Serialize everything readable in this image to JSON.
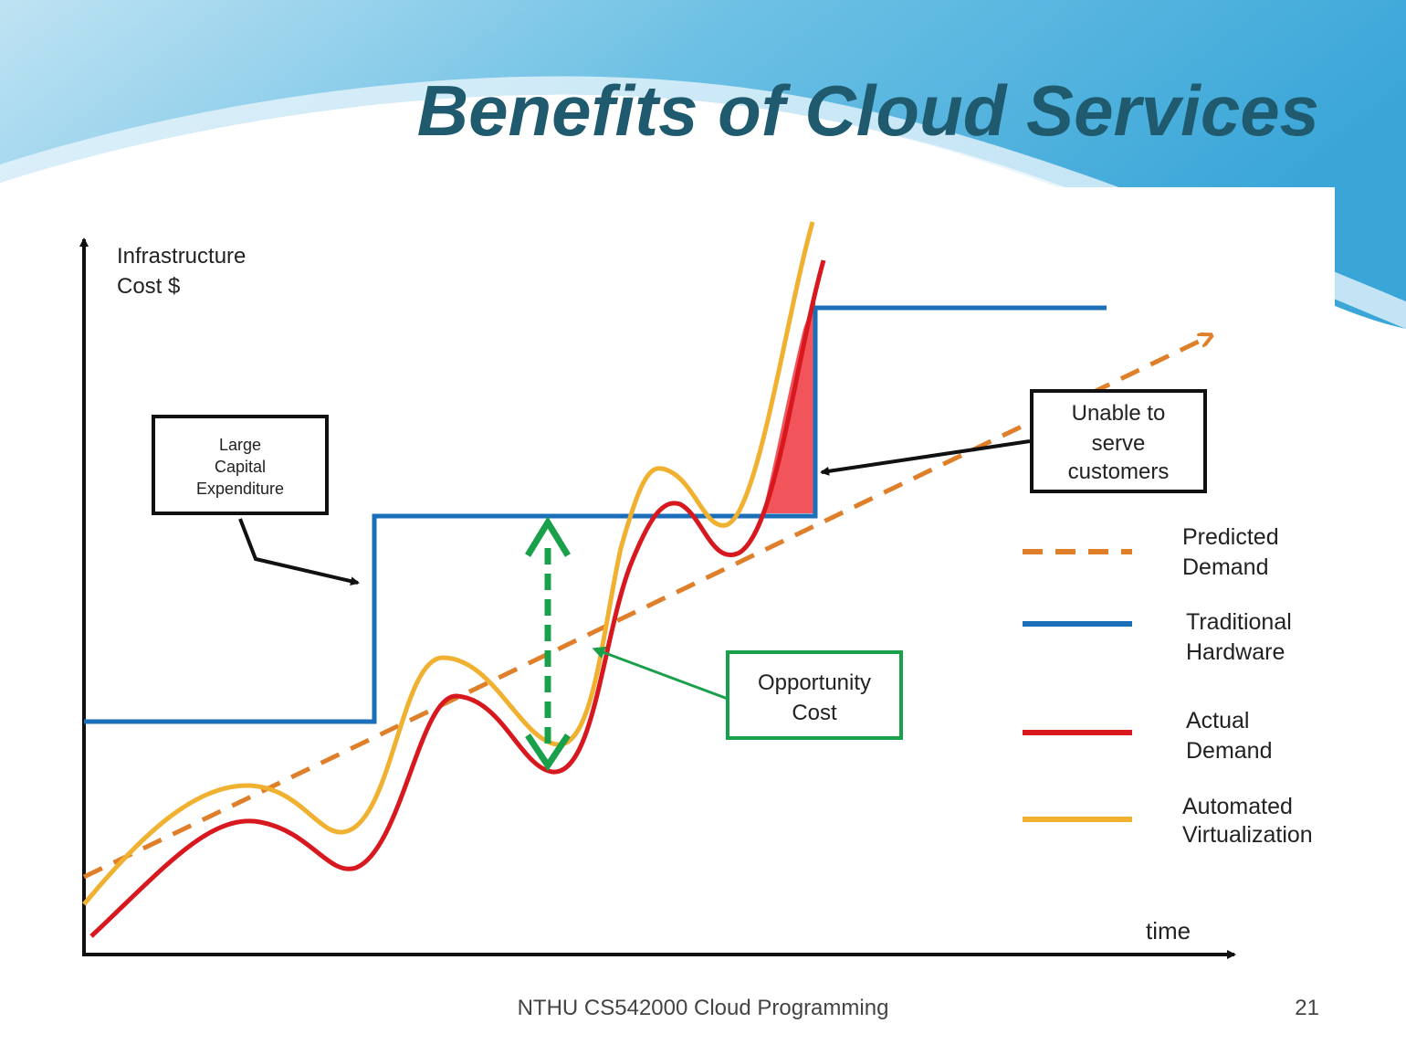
{
  "slide": {
    "title": "Benefits of Cloud Services",
    "footer": "NTHU CS542000 Cloud Programming",
    "page_number": "21"
  },
  "diagram": {
    "y_axis_label": [
      "Infrastructure",
      "Cost $"
    ],
    "x_axis_label": "time",
    "callouts": [
      {
        "label": [
          "Large",
          "Capital",
          "Expenditure"
        ]
      },
      {
        "label": [
          "Unable to",
          "serve",
          "customers"
        ]
      },
      {
        "label": [
          "Opportunity",
          "Cost"
        ]
      }
    ],
    "legend": [
      {
        "label": [
          "Predicted",
          "Demand"
        ]
      },
      {
        "label": [
          "Traditional",
          "Hardware"
        ]
      },
      {
        "label": [
          "Actual",
          "Demand"
        ]
      },
      {
        "label": [
          "Automated",
          "Virtualization"
        ]
      }
    ]
  }
}
